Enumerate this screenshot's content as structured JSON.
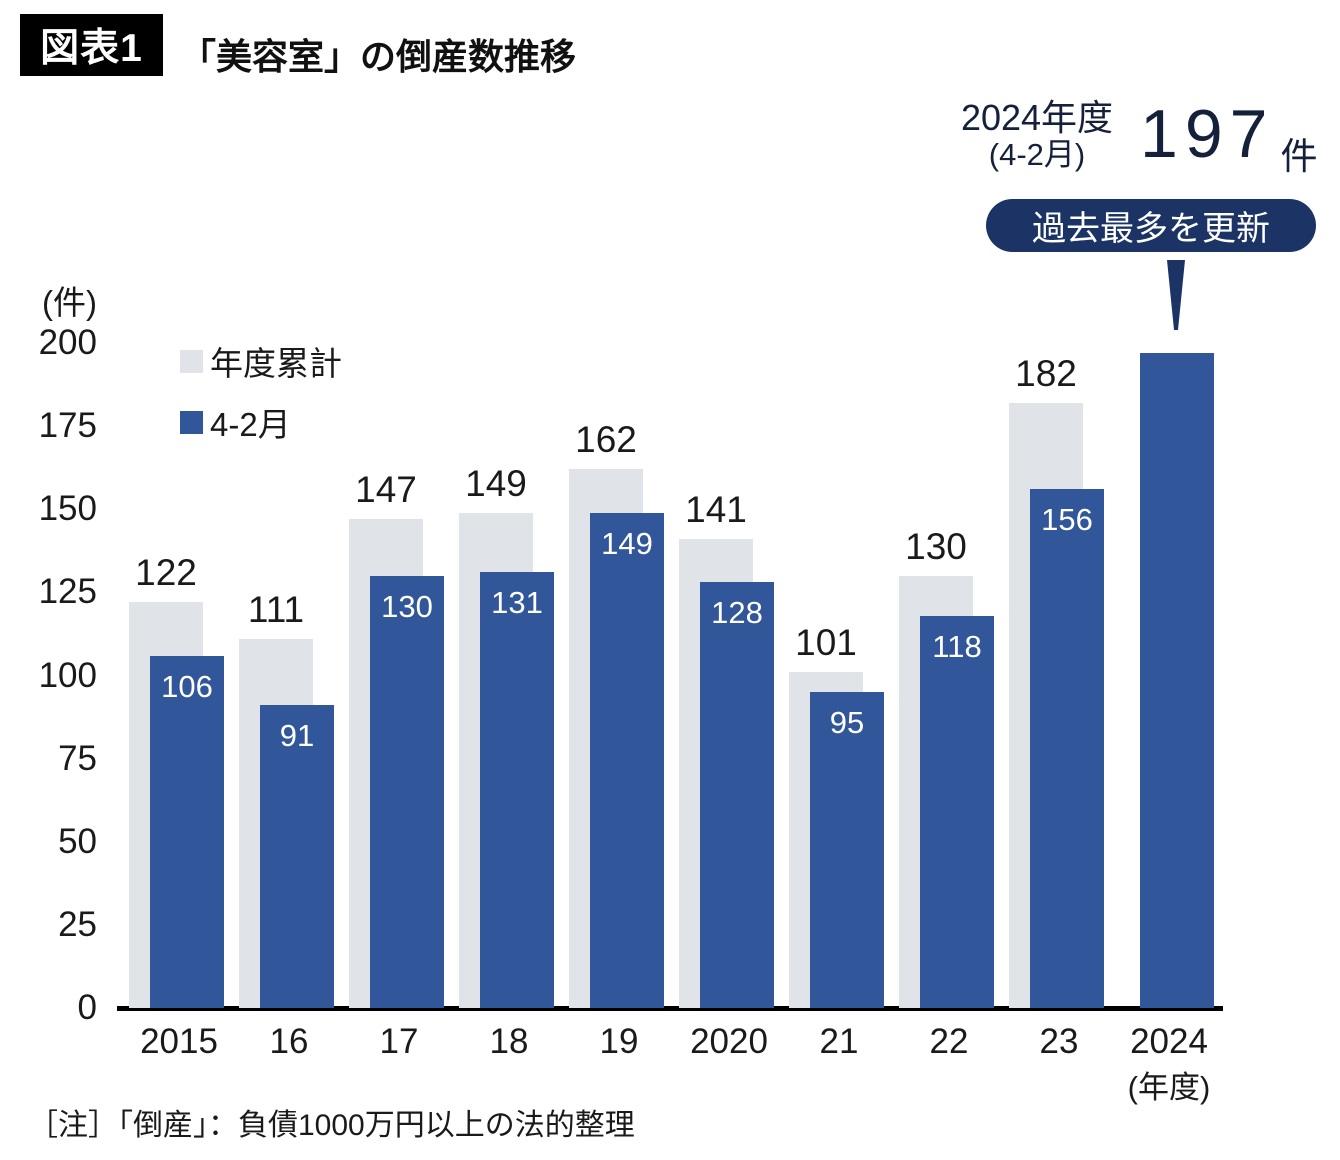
{
  "header": {
    "tag": "図表1",
    "title": "「美容室」の倒産数推移"
  },
  "annotation": {
    "period_line1": "2024年度",
    "period_line2": "(4-2月)",
    "value": "197",
    "unit": "件",
    "badge": "過去最多を更新"
  },
  "y_axis_unit": "(件)",
  "x_axis_unit": "(年度)",
  "note": "［注］「倒産」：負債1000万円以上の法的整理",
  "colors": {
    "bar_gray": "#e0e3e7",
    "bar_blue": "#32569a",
    "navy": "#1b3365",
    "text": "#1a1a1a"
  },
  "chart_data": {
    "type": "bar",
    "title": "「美容室」の倒産数推移",
    "categories": [
      "2015",
      "16",
      "17",
      "18",
      "19",
      "2020",
      "21",
      "22",
      "23",
      "2024"
    ],
    "series": [
      {
        "name": "年度累計",
        "color": "#e0e3e7",
        "values": [
          122,
          111,
          147,
          149,
          162,
          141,
          101,
          130,
          182,
          null
        ]
      },
      {
        "name": "4-2月",
        "color": "#32569a",
        "values": [
          106,
          91,
          130,
          131,
          149,
          128,
          95,
          118,
          156,
          197
        ]
      }
    ],
    "ylim": [
      0,
      200
    ],
    "yticks": [
      0,
      25,
      50,
      75,
      100,
      125,
      150,
      175,
      200
    ],
    "ylabel": "(件)",
    "xlabel": "(年度)",
    "grid": false,
    "legend_position": "inside-top-left",
    "annotation_note": "2024年度(4-2月)は197件で過去最多を更新"
  }
}
